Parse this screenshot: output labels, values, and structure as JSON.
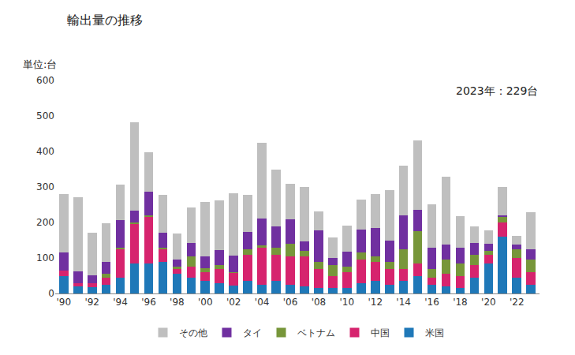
{
  "chart_data": {
    "type": "bar",
    "title": "輸出量の推移",
    "annotations": [
      "単位:台",
      "2023年：229台"
    ],
    "stacked": true,
    "grid": false,
    "legend": "bottom",
    "categories": [
      "'90",
      null,
      "'92",
      null,
      "'94",
      null,
      "'96",
      null,
      "'98",
      null,
      "'00",
      null,
      "'02",
      null,
      "'04",
      null,
      "'06",
      null,
      "'08",
      null,
      "'10",
      null,
      "'12",
      null,
      "'14",
      null,
      "'16",
      null,
      "'18",
      null,
      "'20",
      null,
      "'22",
      null
    ],
    "ylim": [
      0,
      600
    ],
    "yticks": [
      0,
      100,
      200,
      300,
      400,
      500,
      600
    ],
    "series": [
      {
        "name": "米国",
        "color": "#1f78b8",
        "values": [
          50,
          20,
          18,
          25,
          45,
          85,
          85,
          90,
          55,
          45,
          35,
          30,
          22,
          35,
          25,
          35,
          25,
          20,
          15,
          15,
          15,
          30,
          35,
          25,
          35,
          50,
          25,
          20,
          15,
          45,
          85,
          160,
          45,
          25
        ]
      },
      {
        "name": "中国",
        "color": "#d6246e",
        "values": [
          15,
          10,
          12,
          20,
          80,
          110,
          130,
          35,
          15,
          30,
          25,
          40,
          35,
          75,
          105,
          75,
          80,
          85,
          55,
          35,
          45,
          65,
          55,
          45,
          35,
          35,
          20,
          35,
          35,
          35,
          25,
          40,
          55,
          35
        ]
      },
      {
        "name": "ベトナム",
        "color": "#77963a",
        "values": [
          0,
          0,
          0,
          10,
          5,
          5,
          5,
          5,
          5,
          30,
          12,
          10,
          3,
          15,
          5,
          20,
          35,
          15,
          20,
          30,
          15,
          20,
          15,
          20,
          55,
          90,
          25,
          40,
          35,
          30,
          10,
          15,
          25,
          35
        ]
      },
      {
        "name": "タイ",
        "color": "#7030a0",
        "values": [
          50,
          33,
          22,
          33,
          77,
          33,
          67,
          42,
          20,
          38,
          32,
          43,
          47,
          48,
          77,
          58,
          70,
          27,
          87,
          20,
          42,
          65,
          80,
          58,
          95,
          60,
          60,
          42,
          45,
          32,
          20,
          5,
          13,
          30
        ]
      },
      {
        "name": "その他",
        "color": "#bfbfbf",
        "values": [
          165,
          209,
          120,
          109,
          100,
          250,
          111,
          106,
          75,
          100,
          154,
          139,
          176,
          104,
          212,
          161,
          100,
          152,
          55,
          57,
          75,
          85,
          95,
          143,
          140,
          197,
          122,
          193,
          88,
          46,
          38,
          80,
          24,
          104
        ]
      }
    ]
  }
}
